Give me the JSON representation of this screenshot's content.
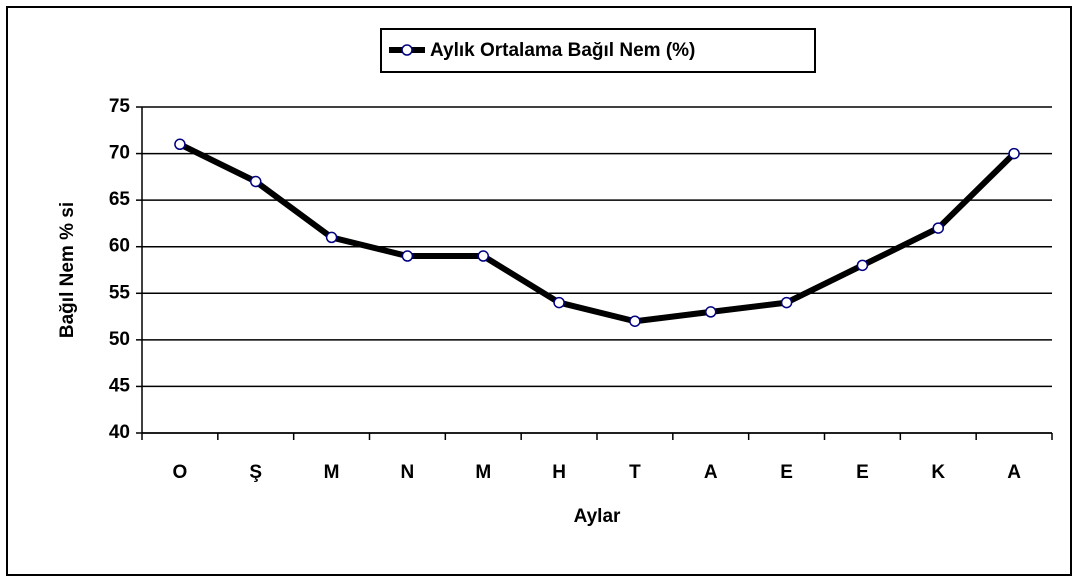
{
  "chart_data": {
    "type": "line",
    "categories": [
      "O",
      "Ş",
      "M",
      "N",
      "M",
      "H",
      "T",
      "A",
      "E",
      "E",
      "K",
      "A"
    ],
    "series": [
      {
        "name": "Aylık Ortalama Bağıl Nem (%)",
        "color": "#000000",
        "marker_color": "#000080",
        "values": [
          71,
          67,
          61,
          59,
          59,
          54,
          52,
          53,
          54,
          58,
          62,
          70
        ]
      }
    ],
    "xlabel": "Aylar",
    "ylabel": "Bağıl Nem % si",
    "ylim": [
      40,
      75
    ],
    "yticks": [
      40,
      45,
      50,
      55,
      60,
      65,
      70,
      75
    ],
    "grid": true,
    "legend": "top"
  }
}
